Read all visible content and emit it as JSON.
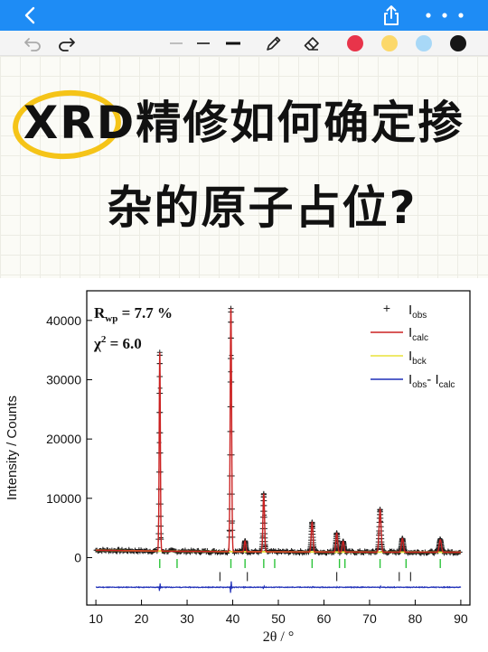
{
  "toolbar": {
    "undo_icon": "undo-icon",
    "redo_icon": "redo-icon",
    "pen_icon": "pencil-icon",
    "eraser_icon": "eraser-icon",
    "colors": [
      "#e8344a",
      "#fcd86a",
      "#a8d8f7",
      "#161616"
    ]
  },
  "note": {
    "title_line1_highlight": "XRD",
    "title_line1_rest": "精修如何确定掺",
    "title_line2": "杂的原子占位?"
  },
  "chart_data": {
    "type": "line",
    "xlabel": "2θ / °",
    "ylabel": "Intensity / Counts",
    "xlim": [
      8,
      92
    ],
    "ylim": [
      -8000,
      45000
    ],
    "xticks": [
      10,
      20,
      30,
      40,
      50,
      60,
      70,
      80,
      90
    ],
    "yticks": [
      0,
      10000,
      20000,
      30000,
      40000
    ],
    "annotations": {
      "rwp_label": "R",
      "rwp_sub": "wp",
      "rwp_value": " = 7.7 %",
      "chi_label": "χ",
      "chi_sup": "2",
      "chi_value": " = 6.0"
    },
    "legend": {
      "placement": "top-right",
      "entries": [
        {
          "symbol": "+",
          "main": "I",
          "sub": "obs",
          "color": "#222222"
        },
        {
          "symbol": "line",
          "main": "I",
          "sub": "calc",
          "color": "#cc2222"
        },
        {
          "symbol": "line",
          "main": "I",
          "sub": "bck",
          "color": "#e8e23a"
        },
        {
          "symbol": "line",
          "main": "I",
          "sub": "obs",
          "mid": "- I",
          "sub2": "calc",
          "color": "#1f2fb8"
        }
      ]
    },
    "background_level": 900,
    "peaks": [
      {
        "x": 24.0,
        "y": 33500
      },
      {
        "x": 39.6,
        "y": 41000
      },
      {
        "x": 42.7,
        "y": 1800
      },
      {
        "x": 46.8,
        "y": 9800
      },
      {
        "x": 57.4,
        "y": 5000
      },
      {
        "x": 62.8,
        "y": 3200
      },
      {
        "x": 64.2,
        "y": 1800
      },
      {
        "x": 72.3,
        "y": 7200
      },
      {
        "x": 77.2,
        "y": 2300
      },
      {
        "x": 85.5,
        "y": 2100
      }
    ],
    "reflection_ticks_green": [
      24.0,
      27.8,
      39.6,
      42.7,
      46.8,
      49.2,
      57.4,
      63.4,
      64.6,
      72.3,
      78.0,
      85.5
    ],
    "reflection_ticks_black": [
      37.2,
      43.2,
      62.8,
      76.5,
      79.0
    ],
    "green_tick_y": -1000,
    "black_tick_y": -3200,
    "difference_offset": -5000
  }
}
